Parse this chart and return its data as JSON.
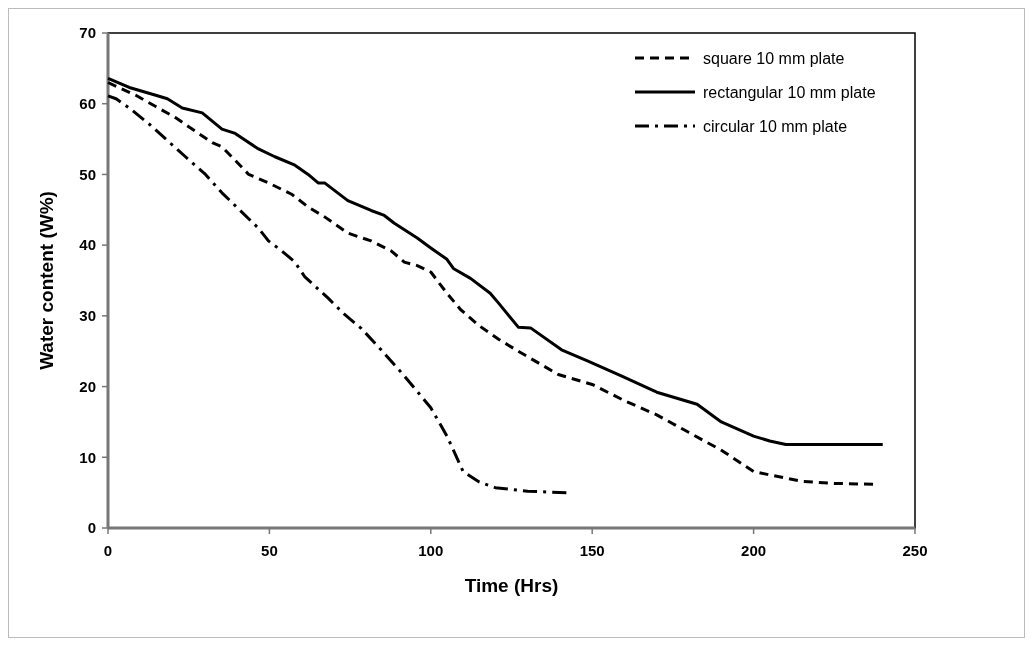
{
  "chart_data": {
    "type": "line",
    "xlabel": "Time (Hrs)",
    "ylabel": "Water content (W%)",
    "xlim": [
      0,
      250
    ],
    "ylim": [
      0,
      70
    ],
    "xticks": [
      0,
      50,
      100,
      150,
      200,
      250
    ],
    "yticks": [
      0,
      10,
      20,
      30,
      40,
      50,
      60,
      70
    ],
    "grid": false,
    "legend": "top right",
    "marker": "none",
    "series": [
      {
        "name": "square 10 mm plate",
        "color": "#000000",
        "line_style": "dashed",
        "x": [
          0,
          8.6,
          14.8,
          21,
          27.1,
          32.3,
          35.3,
          39.4,
          43.6,
          49.7,
          56.9,
          62,
          67.1,
          74.3,
          81.5,
          87.7,
          91.8,
          95.8,
          100,
          105,
          109.2,
          115,
          121,
          127.1,
          139.5,
          150,
          160,
          170,
          180,
          190,
          200,
          205,
          215,
          225,
          237
        ],
        "values": [
          63,
          61.2,
          59.6,
          58,
          56.1,
          54.5,
          53.9,
          52,
          50,
          48.8,
          47.2,
          45.4,
          44,
          41.7,
          40.6,
          39.2,
          37.6,
          37.1,
          36.2,
          33.2,
          30.9,
          28.6,
          26.7,
          25,
          21.7,
          20.3,
          18,
          16,
          13.5,
          11,
          8,
          7.5,
          6.6,
          6.3,
          6.2
        ]
      },
      {
        "name": "rectangular 10 mm plate",
        "color": "#000000",
        "line_style": "solid",
        "x": [
          0,
          6.6,
          14.8,
          18.4,
          23,
          29.2,
          35.3,
          39.4,
          46.6,
          51.7,
          57.9,
          62,
          65.1,
          67.1,
          74.3,
          81.5,
          85.6,
          88.7,
          95.8,
          100,
          105,
          107,
          112.3,
          118.4,
          121,
          127.1,
          130.9,
          140.5,
          148.7,
          159,
          170,
          182.5,
          190,
          200,
          205,
          210,
          240
        ],
        "values": [
          63.6,
          62.3,
          61.2,
          60.7,
          59.4,
          58.7,
          56.4,
          55.8,
          53.6,
          52.5,
          51.3,
          50,
          48.8,
          48.8,
          46.3,
          44.9,
          44.2,
          43.1,
          41,
          39.6,
          38,
          36.7,
          35.3,
          33.2,
          31.8,
          28.4,
          28.3,
          25.2,
          23.6,
          21.5,
          19.2,
          17.5,
          15,
          13,
          12.3,
          11.8,
          11.8
        ]
      },
      {
        "name": "circular 10 mm plate",
        "color": "#000000",
        "line_style": "dashdot",
        "x": [
          0,
          2.5,
          6.6,
          12.8,
          18.4,
          24,
          30.2,
          35.3,
          40.5,
          46.6,
          49.7,
          53.8,
          57.9,
          61,
          68.2,
          73.3,
          78.5,
          84.6,
          91.8,
          100,
          105,
          110,
          115,
          120,
          130,
          142
        ],
        "values": [
          61.1,
          60.7,
          59.4,
          57.1,
          54.8,
          52.5,
          50,
          47.4,
          45.1,
          42.4,
          40.6,
          39.2,
          37.6,
          35.5,
          32.5,
          30.2,
          28.2,
          25.2,
          21.5,
          17,
          13,
          8,
          6.5,
          5.7,
          5.2,
          5
        ]
      }
    ]
  }
}
